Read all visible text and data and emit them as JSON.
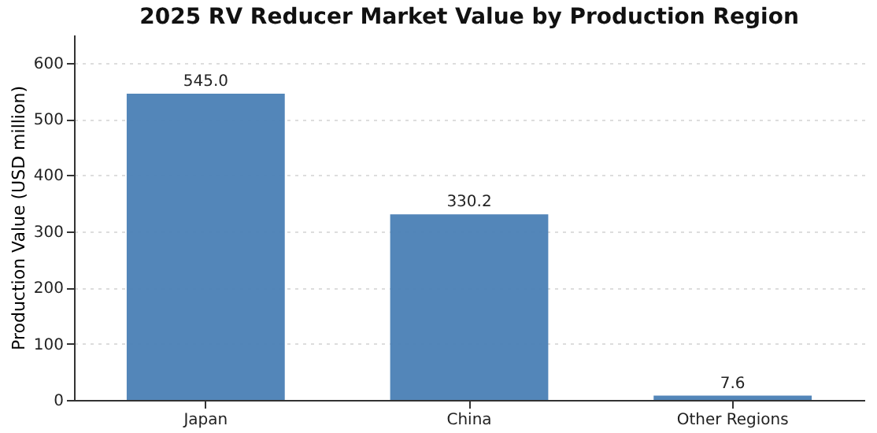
{
  "chart_data": {
    "type": "bar",
    "title": "2025 RV Reducer Market Value by Production Region",
    "ylabel": "Production Value (USD million)",
    "categories": [
      "Japan",
      "China",
      "Other Regions"
    ],
    "values": [
      545.0,
      330.2,
      7.6
    ],
    "value_labels": [
      "545.0",
      "330.2",
      "7.6"
    ],
    "color": "#4a7fb5",
    "ylim": [
      0,
      650
    ],
    "yticks": [
      0,
      100,
      200,
      300,
      400,
      500,
      600
    ],
    "grid": "y"
  }
}
